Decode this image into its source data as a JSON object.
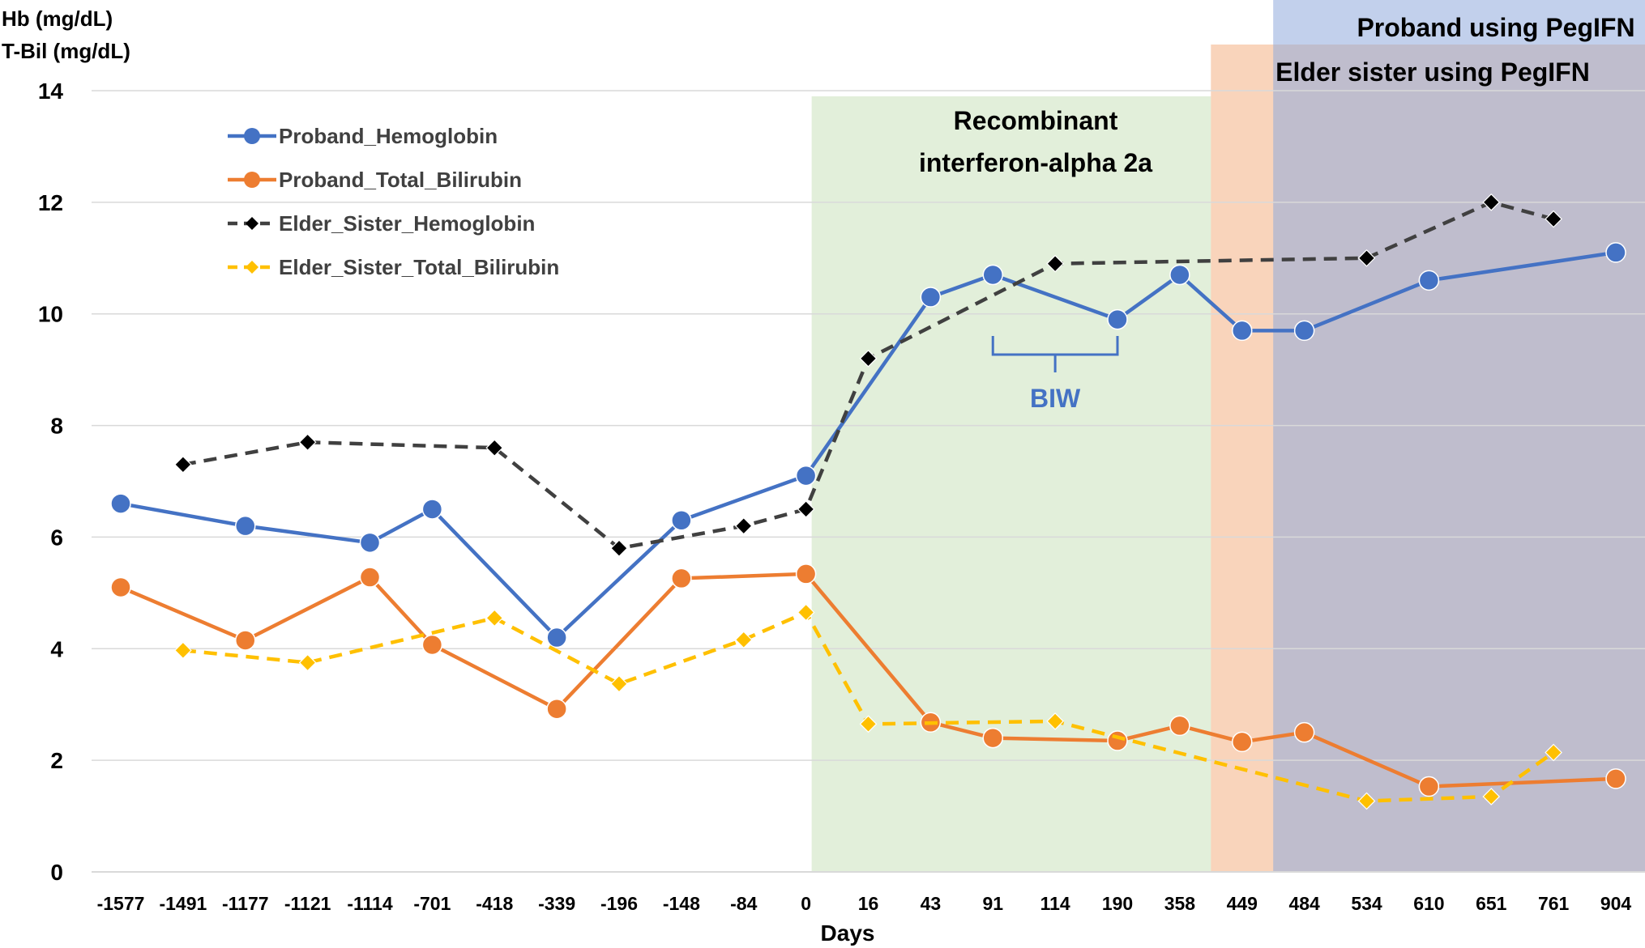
{
  "chart_data": {
    "type": "line",
    "ylabel_lines": [
      "Hb (mg/dL)",
      "T-Bil (mg/dL)"
    ],
    "xlabel": "Days",
    "ylim": [
      0,
      14
    ],
    "yticks": [
      0,
      2,
      4,
      6,
      8,
      10,
      12,
      14
    ],
    "categories": [
      "-1577",
      "-1491",
      "-1177",
      "-1121",
      "-1114",
      "-701",
      "-418",
      "-339",
      "-196",
      "-148",
      "-84",
      "0",
      "16",
      "43",
      "91",
      "114",
      "190",
      "358",
      "449",
      "484",
      "534",
      "610",
      "651",
      "761",
      "904"
    ],
    "grid": "horizontal",
    "legend_position": "top-left",
    "series": [
      {
        "name": "Proband_Hemoglobin",
        "color": "#4472C4",
        "style": "solid",
        "marker": "circle",
        "values": [
          6.6,
          null,
          6.2,
          null,
          5.9,
          6.5,
          null,
          4.2,
          null,
          6.3,
          null,
          7.1,
          null,
          10.3,
          10.7,
          null,
          9.9,
          10.7,
          9.7,
          9.7,
          null,
          10.6,
          null,
          null,
          11.1
        ]
      },
      {
        "name": "Proband_Total_Bilirubin",
        "color": "#ED7D31",
        "style": "solid",
        "marker": "circle",
        "values": [
          5.1,
          null,
          4.15,
          null,
          5.28,
          4.07,
          null,
          2.92,
          null,
          5.26,
          null,
          5.34,
          null,
          2.68,
          2.4,
          null,
          2.35,
          2.62,
          2.33,
          2.5,
          null,
          1.53,
          null,
          null,
          1.67
        ]
      },
      {
        "name": "Elder_Sister_Hemoglobin",
        "color": "#404040",
        "style": "dashed",
        "marker": "diamond",
        "marker_color": "#000000",
        "values": [
          null,
          7.3,
          null,
          7.7,
          null,
          null,
          7.6,
          null,
          5.8,
          null,
          6.2,
          6.5,
          9.2,
          null,
          null,
          10.9,
          null,
          null,
          null,
          null,
          11.0,
          null,
          12.0,
          11.7,
          null
        ]
      },
      {
        "name": "Elder_Sister_Total_Bilirubin",
        "color": "#FFC000",
        "style": "dashed",
        "marker": "diamond",
        "values": [
          null,
          3.97,
          null,
          3.75,
          null,
          null,
          4.55,
          null,
          3.37,
          null,
          4.16,
          4.65,
          2.65,
          null,
          null,
          2.7,
          null,
          null,
          null,
          null,
          1.27,
          null,
          1.35,
          2.14,
          null
        ]
      }
    ],
    "regions": [
      {
        "label_lines": [
          "Recombinant",
          "interferon-alpha 2a"
        ],
        "color": "#E2EFDA",
        "start_index": 11,
        "end": "358"
      },
      {
        "label": "Elder sister using PegIFN",
        "color": "#F4B183",
        "start": "358",
        "end_index": 24
      },
      {
        "label": "Proband using PegIFN",
        "color": "#8FAADC",
        "start": "449",
        "end_index": 24
      }
    ],
    "annotations": [
      {
        "text": "BIW",
        "color": "#4472C4",
        "from_index": 14,
        "to_index": 16
      }
    ]
  }
}
